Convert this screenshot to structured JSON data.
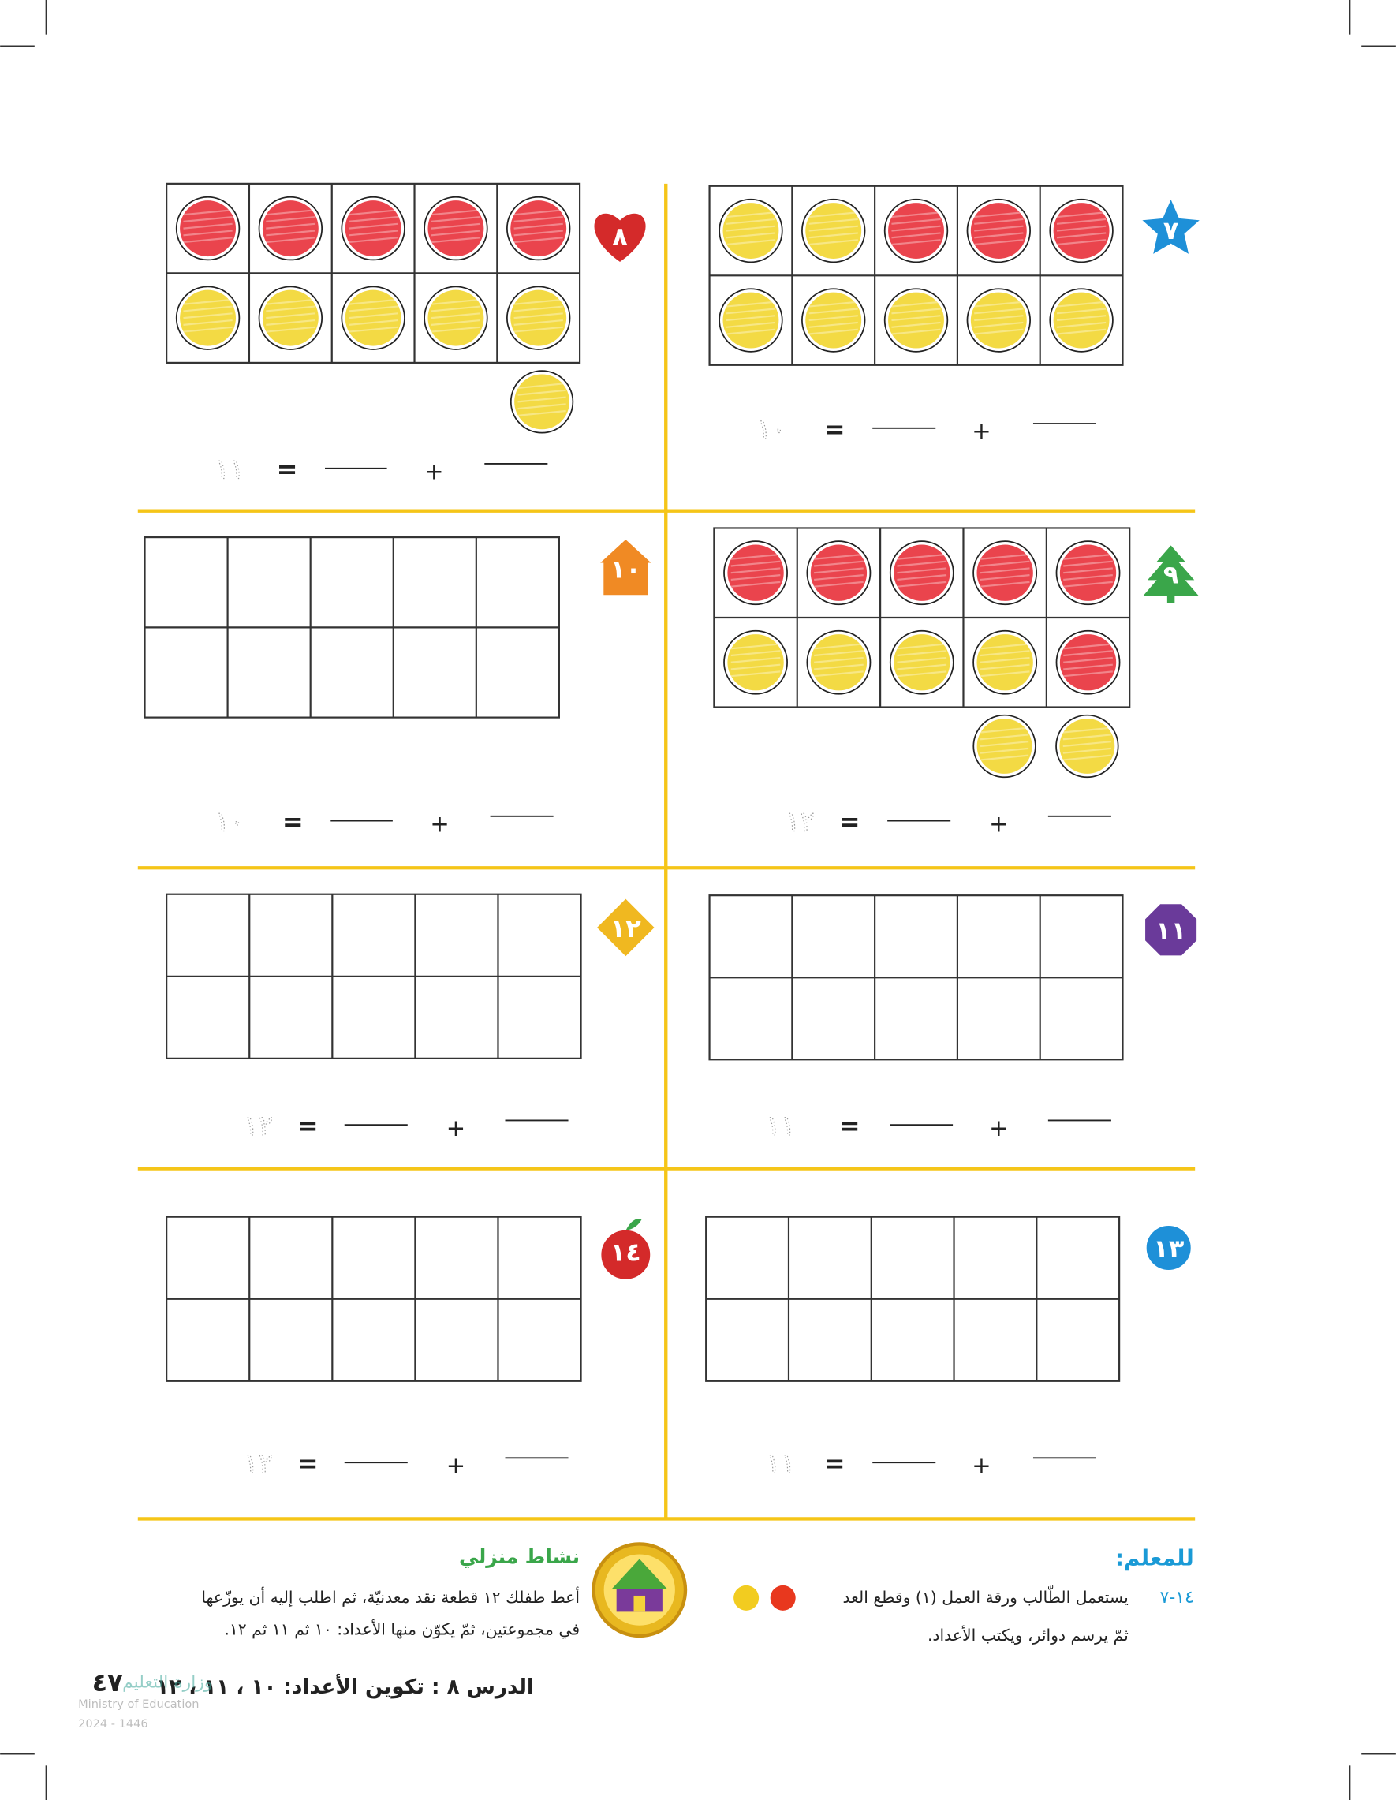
{
  "symbols": {
    "equals": "=",
    "plus": "+"
  },
  "problems": [
    {
      "badge": "٧",
      "total": "١٠",
      "cells": [
        "#f2d630",
        "#f2d630",
        "#e8303a",
        "#e8303a",
        "#e8303a",
        "#f2d630",
        "#f2d630",
        "#f2d630",
        "#f2d630",
        "#f2d630"
      ],
      "extra": []
    },
    {
      "badge": "٨",
      "total": "١١",
      "cells": [
        "#e8303a",
        "#e8303a",
        "#e8303a",
        "#e8303a",
        "#e8303a",
        "#f2d630",
        "#f2d630",
        "#f2d630",
        "#f2d630",
        "#f2d630"
      ],
      "extra": [
        "#f2d630"
      ]
    },
    {
      "badge": "٩",
      "total": "١٢",
      "cells": [
        "#e8303a",
        "#e8303a",
        "#e8303a",
        "#e8303a",
        "#e8303a",
        "#f2d630",
        "#f2d630",
        "#f2d630",
        "#f2d630",
        "#e8303a"
      ],
      "extra": [
        "#f2d630",
        "#f2d630"
      ]
    },
    {
      "badge": "١٠",
      "total": "١٠"
    },
    {
      "badge": "١١",
      "total": "١١"
    },
    {
      "badge": "١٢",
      "total": "١٢"
    },
    {
      "badge": "١٣",
      "total": "١١"
    },
    {
      "badge": "١٤",
      "total": "١٢"
    }
  ],
  "teacher": {
    "title": "للمعلم:",
    "code": "١٤-٧",
    "line1": "يستعمل الطّالب ورقة العمل (١) وقطع العد",
    "line2": "ثمّ يرسم دوائر، ويكتب الأعداد."
  },
  "home": {
    "title": "نشاط منزلي",
    "line1": "أعط طفلك ١٢ قطعة نقد معدنيّة، ثم اطلب إليه أن يوزّعها",
    "line2": "في مجموعتين، ثمّ يكوّن منها الأعداد: ١٠ ثم ١١ ثم ١٢."
  },
  "footer": {
    "lesson": "الدرس ٨ : تكوين الأعداد: ١٠ ، ١١ ، ١٢",
    "page": "٤٧"
  },
  "logo": {
    "name": "وزارة التعليم",
    "english": "Ministry of Education",
    "year": "2024 - 1446"
  }
}
